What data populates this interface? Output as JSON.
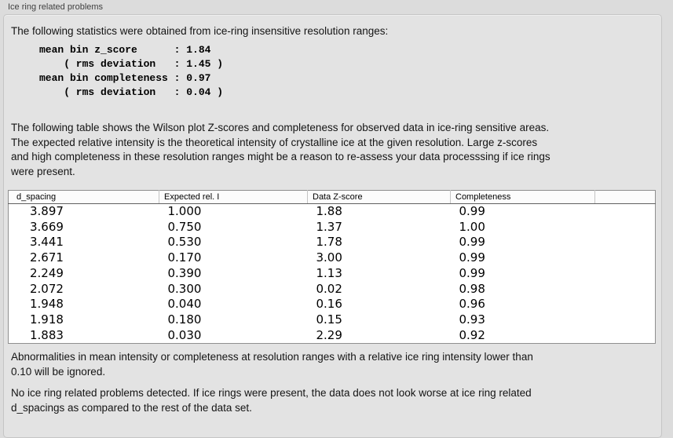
{
  "panel": {
    "title": "Ice ring related problems"
  },
  "intro": "The following statistics were obtained from ice-ring insensitive resolution ranges:",
  "stats_block": {
    "lines": [
      "mean bin z_score      : 1.84",
      "    ( rms deviation   : 1.45 )",
      "mean bin completeness : 0.97",
      "    ( rms deviation   : 0.04 )"
    ],
    "values": {
      "mean_bin_z_score": "1.84",
      "z_score_rms_deviation": "1.45",
      "mean_bin_completeness": "0.97",
      "completeness_rms_deviation": "0.04"
    }
  },
  "description": {
    "lines": [
      "The following table shows the Wilson plot Z-scores and completeness for observed data in ice-ring sensitive areas.",
      "The expected relative intensity is the theoretical intensity of crystalline ice at the given resolution. Large z-scores",
      "and high completeness in these resolution ranges might be a reason to re-assess your data processsing if ice rings",
      "were present."
    ]
  },
  "table": {
    "columns": [
      "d_spacing",
      "Expected rel. I",
      "Data Z-score",
      "Completeness"
    ],
    "rows": [
      [
        "3.897",
        "1.000",
        "1.88",
        "0.99"
      ],
      [
        "3.669",
        "0.750",
        "1.37",
        "1.00"
      ],
      [
        "3.441",
        "0.530",
        "1.78",
        "0.99"
      ],
      [
        "2.671",
        "0.170",
        "3.00",
        "0.99"
      ],
      [
        "2.249",
        "0.390",
        "1.13",
        "0.99"
      ],
      [
        "2.072",
        "0.300",
        "0.02",
        "0.98"
      ],
      [
        "1.948",
        "0.040",
        "0.16",
        "0.96"
      ],
      [
        "1.918",
        "0.180",
        "0.15",
        "0.93"
      ],
      [
        "1.883",
        "0.030",
        "2.29",
        "0.92"
      ]
    ]
  },
  "notes": {
    "ignore_note_lines": [
      "Abnormalities in mean intensity or completeness at resolution ranges with a relative ice ring intensity lower than",
      "0.10 will be ignored."
    ],
    "conclusion_lines": [
      "No ice ring related problems detected. If ice rings were present, the data does not look worse at ice ring related",
      "d_spacings as compared to the rest of the data set."
    ]
  },
  "colors": {
    "outer_bg": "#dcdcdc",
    "panel_bg": "#e3e3e3",
    "table_bg": "#ffffff",
    "table_border": "#8f8f8f"
  }
}
